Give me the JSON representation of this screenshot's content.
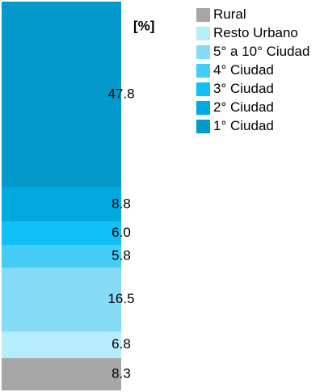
{
  "chart_data": {
    "type": "stacked-bar",
    "unit_label": "[%]",
    "ylim": [
      0,
      100
    ],
    "legend": "right",
    "series": [
      {
        "name": "Rural",
        "color": "#a6a6a6",
        "values": [
          8.3
        ],
        "value_labels": [
          "8.3"
        ]
      },
      {
        "name": "Resto Urbano",
        "color": "#b6ecfb",
        "values": [
          6.8
        ],
        "value_labels": [
          "6.8"
        ]
      },
      {
        "name": "5° a 10° Ciudad",
        "color": "#86dbf6",
        "values": [
          16.5
        ],
        "value_labels": [
          "16.5"
        ]
      },
      {
        "name": "4° Ciudad",
        "color": "#44cbf6",
        "values": [
          5.8
        ],
        "value_labels": [
          "5.8"
        ]
      },
      {
        "name": "3° Ciudad",
        "color": "#10bff7",
        "values": [
          6.0
        ],
        "value_labels": [
          "6.0"
        ]
      },
      {
        "name": "2° Ciudad",
        "color": "#00a9df",
        "values": [
          8.8
        ],
        "value_labels": [
          "8.8"
        ]
      },
      {
        "name": "1° Ciudad",
        "color": "#0399cb",
        "values": [
          47.8
        ],
        "value_labels": [
          "47.8"
        ]
      }
    ]
  }
}
